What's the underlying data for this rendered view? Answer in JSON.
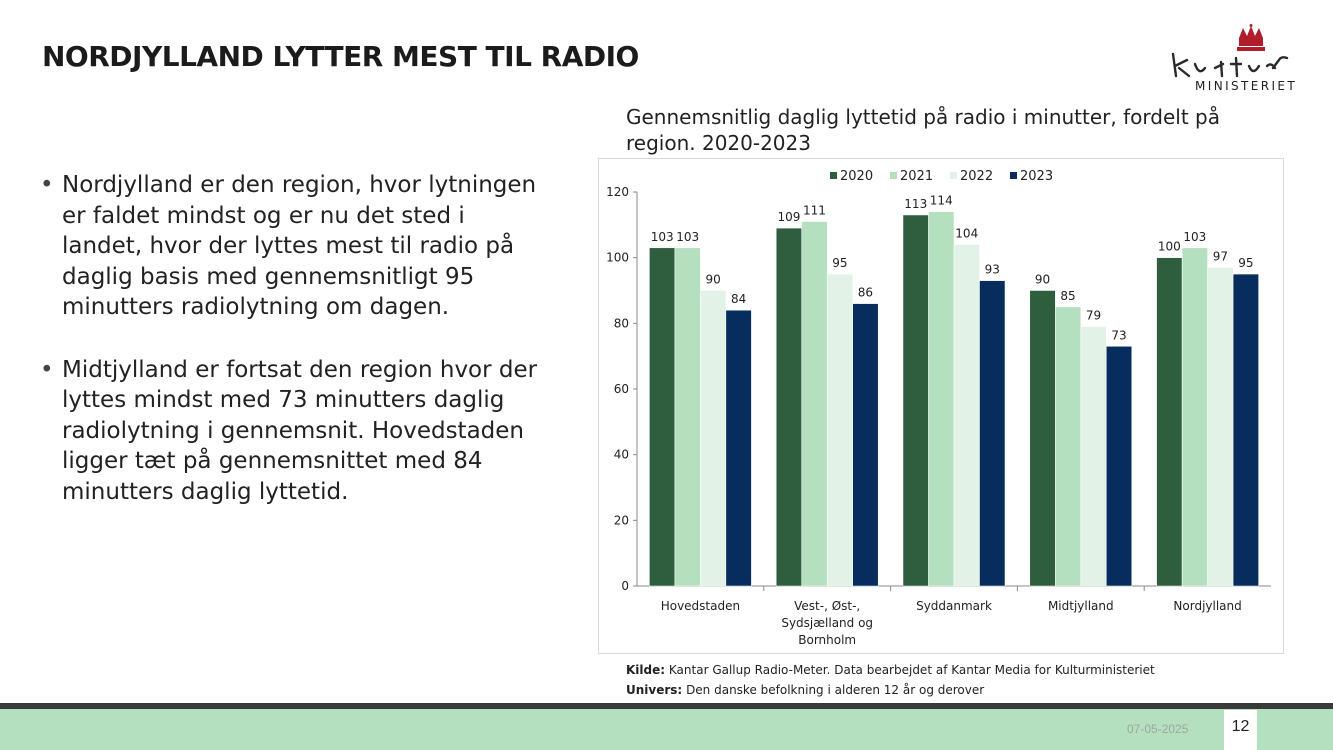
{
  "slide": {
    "title": "NORDJYLLAND LYTTER MEST TIL RADIO",
    "bullets": [
      "Nordjylland er den region, hvor lytningen er faldet mindst og er nu det sted i landet, hvor der lyttes mest til radio på daglig basis med gennemsnitligt 95 minutters radiolytning om dagen.",
      "Midtjylland er fortsat den region hvor der lyttes mindst med 73 minutters daglig radiolytning i gennemsnit. Hovedstaden ligger tæt på gennemsnittet med 84 minutters daglig lyttetid."
    ],
    "source_label": "Kilde:",
    "source_text": "Kantar Gallup Radio-Meter. Data bearbejdet af Kantar Media for Kulturministeriet",
    "universe_label": "Univers:",
    "universe_text": "Den danske befolkning i alderen 12 år og derover",
    "date": "07-05-2025",
    "page_number": "12"
  },
  "logo": {
    "word": "MINISTERIET",
    "script_text": "Kultur"
  },
  "colors": {
    "series": [
      "#2e5e3e",
      "#b5e0c0",
      "#e3f2e6",
      "#072d5e"
    ],
    "footer_green": "#b5e0c0"
  },
  "chart_data": {
    "type": "bar",
    "title": "Gennemsnitlig daglig lyttetid på radio i minutter, fordelt på region. 2020-2023",
    "categories": [
      [
        "Hovedstaden"
      ],
      [
        "Vest-, Øst-,",
        "Sydsjælland og",
        "Bornholm"
      ],
      [
        "Syddanmark"
      ],
      [
        "Midtjylland"
      ],
      [
        "Nordjylland"
      ]
    ],
    "series": [
      {
        "name": "2020",
        "values": [
          103,
          109,
          113,
          90,
          100
        ]
      },
      {
        "name": "2021",
        "values": [
          103,
          111,
          114,
          85,
          103
        ]
      },
      {
        "name": "2022",
        "values": [
          90,
          95,
          104,
          79,
          97
        ]
      },
      {
        "name": "2023",
        "values": [
          84,
          86,
          93,
          73,
          95
        ]
      }
    ],
    "ylim": [
      0,
      120
    ],
    "yticks": [
      0,
      20,
      40,
      60,
      80,
      100,
      120
    ],
    "legend": "top",
    "xlabel": "",
    "ylabel": ""
  }
}
